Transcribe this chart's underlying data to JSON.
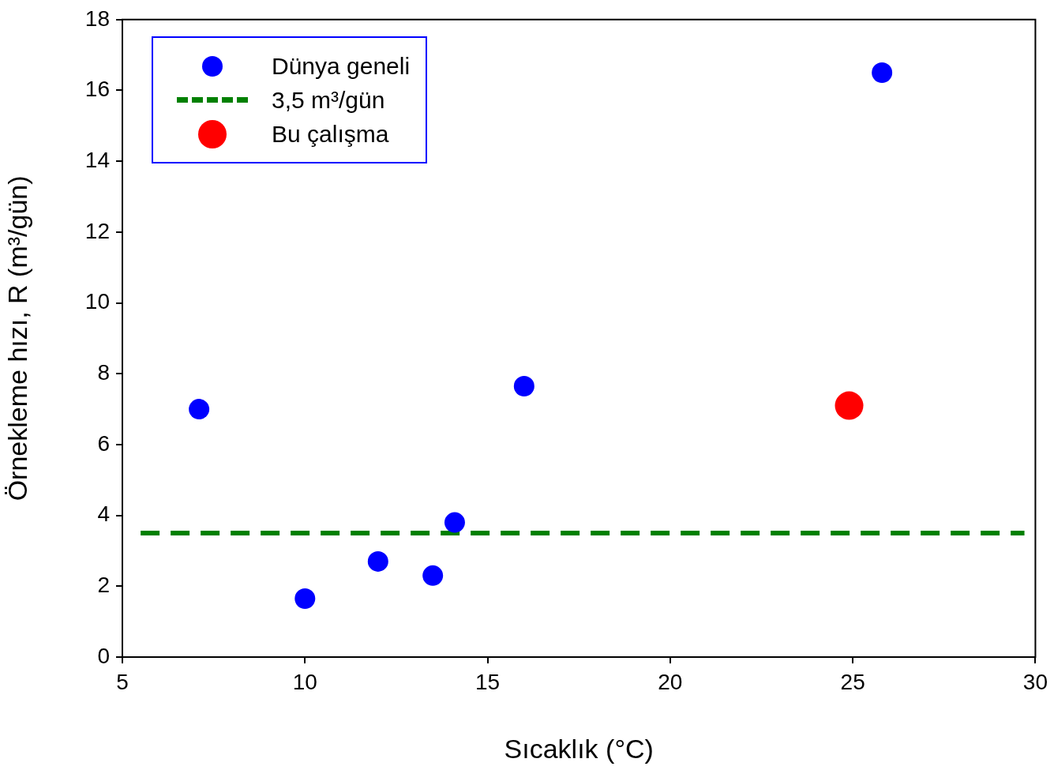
{
  "chart_data": {
    "type": "scatter",
    "xlabel": "Sıcaklık (°C)",
    "ylabel": "Örnekleme hızı, R (m³/gün)",
    "series": [
      {
        "name": "Dünya geneli",
        "marker": "circle",
        "color": "#0000ff",
        "x": [
          7.1,
          10.0,
          12.0,
          13.5,
          14.1,
          16.0,
          25.8
        ],
        "values": [
          7.0,
          1.65,
          2.7,
          2.3,
          3.8,
          7.65,
          16.5
        ]
      },
      {
        "name": "3,5 m³/gün",
        "type": "line",
        "marker": "none",
        "color": "#008000",
        "line_style": "dashed",
        "x": [
          5.5,
          29.7
        ],
        "values": [
          3.5,
          3.5
        ]
      },
      {
        "name": "Bu çalışma",
        "marker": "circle",
        "color": "#ff0000",
        "x": [
          24.9
        ],
        "values": [
          7.1
        ]
      }
    ],
    "xlim": [
      5,
      30
    ],
    "xticks": [
      5,
      10,
      15,
      20,
      25,
      30
    ],
    "ylim": [
      0,
      18
    ],
    "yticks": [
      0,
      2,
      4,
      6,
      8,
      10,
      12,
      14,
      16,
      18
    ],
    "grid": false,
    "legend": "top left"
  }
}
